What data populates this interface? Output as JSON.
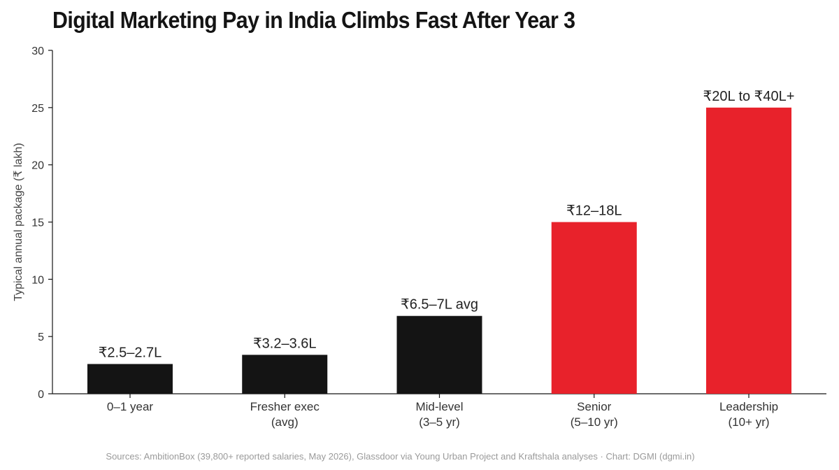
{
  "colors": {
    "dark": "#141414",
    "accent": "#e8222b",
    "axis": "#141414"
  },
  "chart_data": {
    "type": "bar",
    "title": "Digital Marketing Pay in India Climbs Fast After Year 3",
    "ylabel": "Typical annual package (₹ lakh)",
    "xlabel": "",
    "ylim": [
      0,
      30
    ],
    "yticks": [
      0,
      5,
      10,
      15,
      20,
      25,
      30
    ],
    "grid": false,
    "categories": [
      [
        "0–1 year"
      ],
      [
        "Fresher exec",
        "(avg)"
      ],
      [
        "Mid-level",
        "(3–5 yr)"
      ],
      [
        "Senior",
        "(5–10 yr)"
      ],
      [
        "Leadership",
        "(10+ yr)"
      ]
    ],
    "values": [
      2.6,
      3.4,
      6.8,
      15,
      25
    ],
    "data_labels": [
      "₹2.5–2.7L",
      "₹3.2–3.6L",
      "₹6.5–7L avg",
      "₹12–18L",
      "₹20L to ₹40L+"
    ],
    "bar_colors": [
      "#141414",
      "#141414",
      "#141414",
      "#e8222b",
      "#e8222b"
    ],
    "source": "Sources: AmbitionBox (39,800+ reported salaries, May 2026), Glassdoor via Young Urban Project and Kraftshala analyses · Chart: DGMI (dgmi.in)"
  }
}
